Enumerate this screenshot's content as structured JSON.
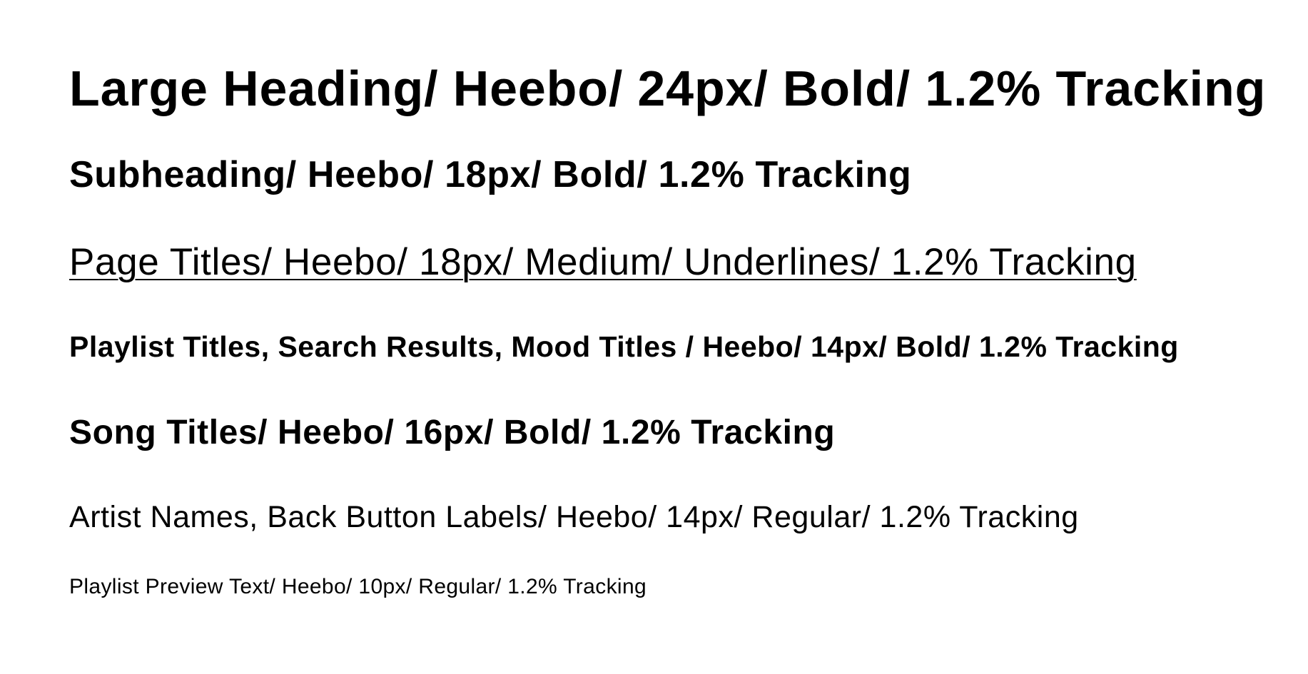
{
  "type_specs": {
    "large_heading": "Large Heading/ Heebo/ 24px/ Bold/ 1.2% Tracking",
    "subheading": "Subheading/ Heebo/ 18px/ Bold/ 1.2% Tracking",
    "page_titles": "Page Titles/ Heebo/ 18px/ Medium/ Underlines/ 1.2% Tracking",
    "playlist_titles": "Playlist Titles, Search Results, Mood Titles / Heebo/ 14px/ Bold/ 1.2% Tracking",
    "song_titles": "Song Titles/ Heebo/ 16px/ Bold/ 1.2% Tracking",
    "artist_names": "Artist Names, Back Button Labels/ Heebo/ 14px/ Regular/ 1.2% Tracking",
    "playlist_preview_text": "Playlist Preview Text/ Heebo/ 10px/ Regular/ 1.2% Tracking"
  }
}
